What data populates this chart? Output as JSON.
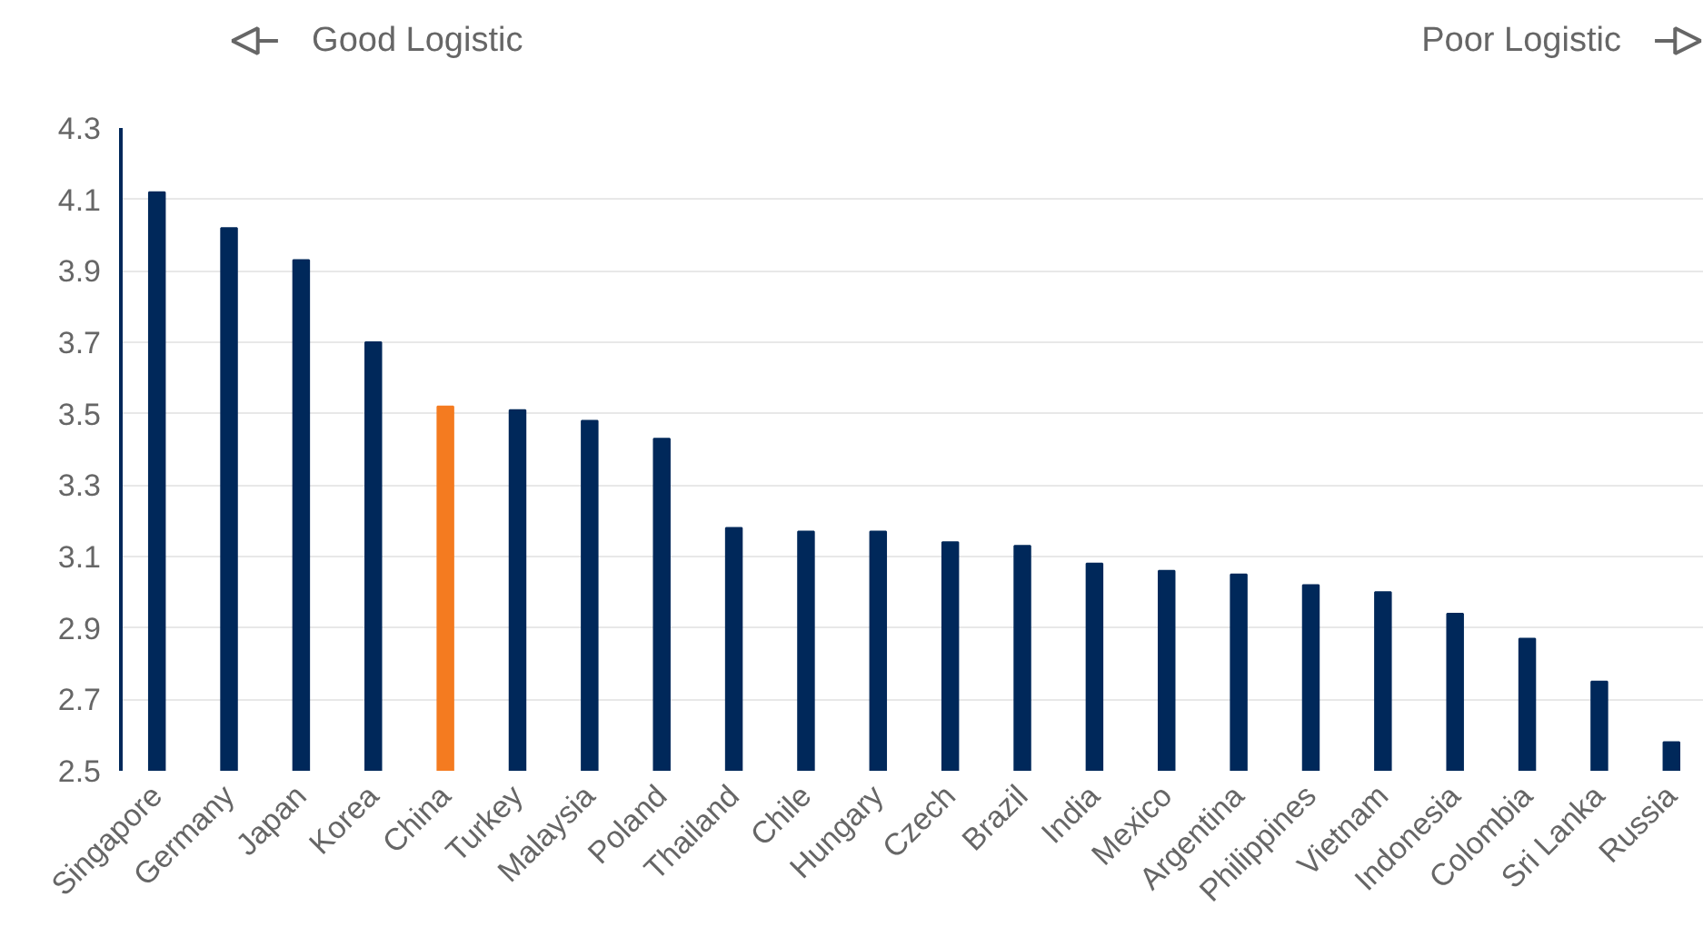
{
  "chart_data": {
    "type": "bar",
    "categories": [
      "Singapore",
      "Germany",
      "Japan",
      "Korea",
      "China",
      "Turkey",
      "Malaysia",
      "Poland",
      "Thailand",
      "Chile",
      "Hungary",
      "Czech",
      "Brazil",
      "India",
      "Mexico",
      "Argentina",
      "Philippines",
      "Vietnam",
      "Indonesia",
      "Colombia",
      "Sri Lanka",
      "Russia"
    ],
    "values": [
      4.12,
      4.02,
      3.93,
      3.7,
      3.52,
      3.51,
      3.48,
      3.43,
      3.18,
      3.17,
      3.17,
      3.14,
      3.13,
      3.08,
      3.06,
      3.05,
      3.02,
      3.0,
      2.94,
      2.87,
      2.75,
      2.58
    ],
    "colors": [
      "#00285a",
      "#00285a",
      "#00285a",
      "#00285a",
      "#f47b20",
      "#00285a",
      "#00285a",
      "#00285a",
      "#00285a",
      "#00285a",
      "#00285a",
      "#00285a",
      "#00285a",
      "#00285a",
      "#00285a",
      "#00285a",
      "#00285a",
      "#00285a",
      "#00285a",
      "#00285a",
      "#00285a",
      "#00285a"
    ],
    "ylim": [
      2.5,
      4.3
    ],
    "yticks": [
      {
        "value": 2.5,
        "label": "2.5"
      },
      {
        "value": 2.7,
        "label": "2.7"
      },
      {
        "value": 2.9,
        "label": "2.9"
      },
      {
        "value": 3.1,
        "label": "3.1"
      },
      {
        "value": 3.3,
        "label": "3.3"
      },
      {
        "value": 3.5,
        "label": "3.5"
      },
      {
        "value": 3.7,
        "label": "3.7"
      },
      {
        "value": 3.9,
        "label": "3.9"
      },
      {
        "value": 4.1,
        "label": "4.1"
      },
      {
        "value": 4.3,
        "label": "4.3"
      }
    ],
    "grid": "y",
    "annotations": [
      "Good Logistic",
      "Poor Logistic"
    ]
  }
}
